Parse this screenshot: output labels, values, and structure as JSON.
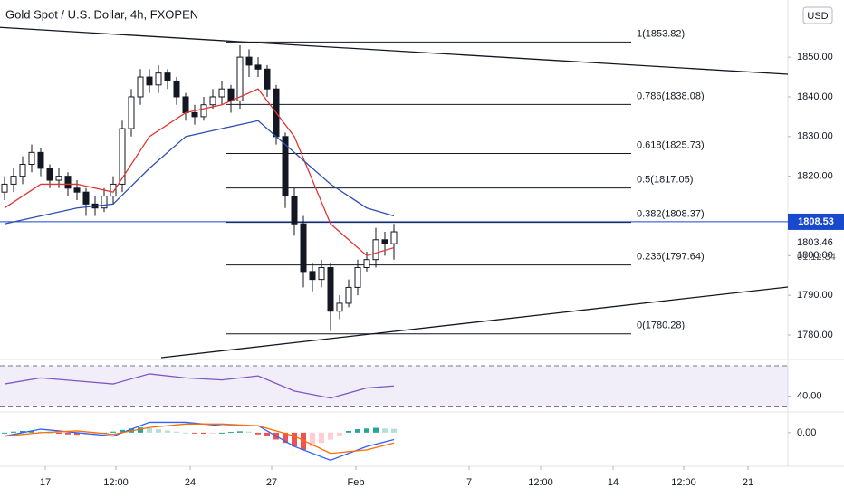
{
  "chart_data": {
    "type": "candlestick",
    "title": "Gold Spot / U.S. Dollar, 4h, FXOPEN",
    "currency": "USD",
    "xlim": [
      -0.5,
      86.5
    ],
    "xticks": [
      {
        "value": 4.5,
        "label": "17"
      },
      {
        "value": 12.3,
        "label": "12:00"
      },
      {
        "value": 20.5,
        "label": "24"
      },
      {
        "value": 29.5,
        "label": "27"
      },
      {
        "value": 38.8,
        "label": "Feb"
      },
      {
        "value": 51.3,
        "label": "7"
      },
      {
        "value": 59.2,
        "label": "12:00"
      },
      {
        "value": 67.2,
        "label": "14"
      },
      {
        "value": 75,
        "label": "12:00"
      },
      {
        "value": 82.1,
        "label": "21"
      }
    ],
    "ylim": [
      1774.3,
      1864.4
    ],
    "yticks": [
      {
        "value": 1780,
        "label": "1780.00"
      },
      {
        "value": 1790,
        "label": "1790.00"
      },
      {
        "value": 1800,
        "label": "1800.00"
      },
      {
        "value": 1820,
        "label": "1820.00"
      },
      {
        "value": 1830,
        "label": "1830.00"
      },
      {
        "value": 1840,
        "label": "1840.00"
      },
      {
        "value": 1850,
        "label": "1850.00"
      }
    ],
    "up_color": "#ffffff",
    "down_color": "#131722",
    "open": [
      1816,
      1818,
      1820,
      1823,
      1826,
      1822,
      1819,
      1820,
      1817,
      1816,
      1813,
      1812,
      1815,
      1818,
      1832,
      1840,
      1845,
      1843,
      1846,
      1844,
      1840,
      1836,
      1835,
      1838,
      1840,
      1842,
      1839,
      1850,
      1848,
      1847,
      1842,
      1830,
      1815,
      1808,
      1796,
      1794,
      1797,
      1786,
      1788,
      1792,
      1797,
      1799,
      1804,
      1803
    ],
    "high": [
      1820,
      1822,
      1825,
      1828,
      1827,
      1823,
      1822,
      1821,
      1819,
      1817,
      1815,
      1817,
      1820,
      1834,
      1842,
      1847,
      1847,
      1848,
      1847,
      1845,
      1841,
      1838,
      1840,
      1842,
      1844,
      1843,
      1853,
      1852,
      1850,
      1848,
      1843,
      1831,
      1817,
      1810,
      1798,
      1799,
      1798,
      1790,
      1794,
      1799,
      1801,
      1807,
      1806,
      1808
    ],
    "low": [
      1814,
      1816,
      1818,
      1821,
      1820,
      1817,
      1817,
      1815,
      1814,
      1810,
      1810,
      1811,
      1813,
      1816,
      1830,
      1838,
      1841,
      1841,
      1842,
      1838,
      1834,
      1833,
      1834,
      1837,
      1838,
      1836,
      1837,
      1845,
      1845,
      1840,
      1828,
      1812,
      1805,
      1792,
      1791,
      1792,
      1781,
      1784,
      1787,
      1790,
      1796,
      1797,
      1800,
      1799
    ],
    "close": [
      1818,
      1820,
      1823,
      1826,
      1822,
      1819,
      1820,
      1817,
      1816,
      1813,
      1812,
      1815,
      1818,
      1832,
      1840,
      1845,
      1843,
      1846,
      1844,
      1840,
      1836,
      1835,
      1838,
      1840,
      1842,
      1839,
      1850,
      1848,
      1847,
      1842,
      1830,
      1815,
      1808,
      1796,
      1794,
      1797,
      1786,
      1788,
      1792,
      1797,
      1799,
      1804,
      1803,
      1806
    ],
    "series": [
      {
        "color": "#e03434",
        "x": [
          0,
          4,
          8,
          12,
          16,
          20,
          24,
          28,
          32,
          36,
          40,
          43
        ],
        "values": [
          1812,
          1818,
          1818,
          1816,
          1830,
          1836,
          1838,
          1842,
          1830,
          1808,
          1800,
          1802
        ]
      },
      {
        "color": "#2f4fb0",
        "x": [
          0,
          4,
          8,
          12,
          16,
          20,
          24,
          28,
          32,
          36,
          40,
          43
        ],
        "values": [
          1808,
          1810,
          1812,
          1813,
          1822,
          1830,
          1832,
          1834,
          1826,
          1818,
          1812,
          1810
        ]
      }
    ],
    "fib_x": [
      24.5,
      69.2
    ],
    "fib_levels": [
      {
        "value": 1853.82,
        "label": "1(1853.82)"
      },
      {
        "value": 1838.08,
        "label": "0.786(1838.08)"
      },
      {
        "value": 1825.73,
        "label": "0.618(1825.73)"
      },
      {
        "value": 1817.05,
        "label": "0.5(1817.05)"
      },
      {
        "value": 1808.37,
        "label": "0.382(1808.37)"
      },
      {
        "value": 1797.64,
        "label": "0.236(1797.64)"
      },
      {
        "value": 1780.28,
        "label": "0(1780.28)"
      }
    ],
    "trendlines": [
      {
        "x": [
          -0.5,
          86.5
        ],
        "values": [
          1857.5,
          1845.7
        ]
      },
      {
        "x": [
          17.3,
          86.5
        ],
        "values": [
          1774.3,
          1792.1
        ]
      }
    ],
    "current_price": 1808.53,
    "secondary_price": "1803.46",
    "countdown": "01:12:34",
    "rsi": {
      "ylim": [
        24.2,
        76.3
      ],
      "bands": [
        70,
        30
      ],
      "yticks": [
        {
          "value": 40,
          "label": "40.00"
        }
      ],
      "color": "#7e57c2",
      "x": [
        0,
        4,
        8,
        12,
        16,
        20,
        24,
        28,
        32,
        36,
        40,
        43
      ],
      "values": [
        52,
        58,
        55,
        52,
        62,
        58,
        56,
        60,
        45,
        38,
        48,
        50
      ]
    },
    "macd": {
      "ylim": [
        -9.75,
        6
      ],
      "yticks": [
        {
          "value": 0,
          "label": "0.00"
        }
      ],
      "histogram": [
        0,
        0.3,
        0.5,
        0.5,
        0.3,
        0,
        -0.3,
        -0.5,
        -0.6,
        -0.5,
        -0.3,
        0,
        0.3,
        0.8,
        1.2,
        1.5,
        1.3,
        1,
        0.6,
        0.3,
        0,
        -0.2,
        -0.3,
        -0.2,
        0,
        0.2,
        0.4,
        0.3,
        -0.5,
        -1,
        -2,
        -3,
        -4,
        -5,
        -4,
        -3,
        -2,
        -1,
        0.5,
        1,
        1.2,
        1.4,
        1.2,
        1.1
      ],
      "x": [
        0,
        4,
        8,
        12,
        16,
        20,
        24,
        28,
        32,
        36,
        40,
        43
      ],
      "lines": [
        {
          "color": "#2962ff",
          "values": [
            -1,
            1,
            0,
            -1,
            3,
            3,
            2,
            2,
            -4,
            -8,
            -4,
            -2
          ]
        },
        {
          "color": "#ff6d00",
          "values": [
            -1,
            0,
            0.5,
            -0.5,
            1.5,
            2.5,
            2.5,
            2,
            -1,
            -6,
            -5,
            -3
          ]
        }
      ]
    }
  }
}
